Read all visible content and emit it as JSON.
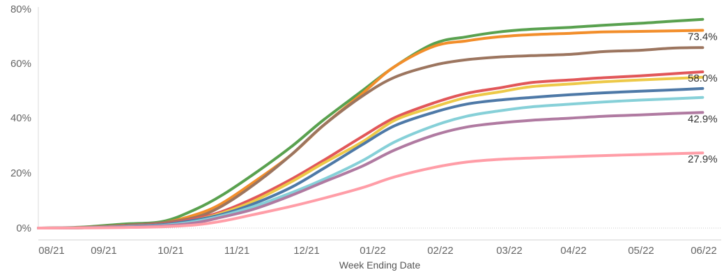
{
  "chart_data": {
    "type": "line",
    "xlabel": "Week Ending Date",
    "ylabel": "",
    "ylim": [
      0,
      80
    ],
    "y_tick_labels": [
      "0%",
      "20%",
      "40%",
      "60%",
      "80%"
    ],
    "y_ticks": [
      0,
      20,
      40,
      60,
      80
    ],
    "x_tick_labels": [
      "08/21",
      "09/21",
      "10/21",
      "11/21",
      "12/21",
      "01/22",
      "02/22",
      "03/22",
      "04/22",
      "05/22",
      "06/22"
    ],
    "x_range": [
      "2021-08-14",
      "2022-06-05"
    ],
    "grid": "horizontal baseline only",
    "x": [
      "2021-08-14",
      "2021-09-01",
      "2021-09-20",
      "2021-10-07",
      "2021-10-21",
      "2021-11-01",
      "2021-11-15",
      "2021-12-01",
      "2021-12-15",
      "2022-01-01",
      "2022-01-15",
      "2022-02-01",
      "2022-02-15",
      "2022-03-01",
      "2022-03-15",
      "2022-04-01",
      "2022-04-15",
      "2022-05-01",
      "2022-05-15",
      "2022-05-28"
    ],
    "series": [
      {
        "color": "#59a14f",
        "values": [
          0,
          0.3,
          1.5,
          2.5,
          7,
          12,
          20,
          30,
          40,
          51,
          60,
          68.5,
          71,
          72.8,
          73.8,
          74.5,
          75.3,
          76,
          76.8,
          77.5
        ]
      },
      {
        "color": "#f28e2b",
        "values": [
          0,
          0.2,
          1,
          2,
          5,
          9,
          17,
          27,
          38,
          50,
          60,
          67.5,
          69.5,
          71,
          71.8,
          72.3,
          72.8,
          73,
          73.2,
          73.4
        ]
      },
      {
        "color": "#9c755f",
        "values": [
          0,
          0.2,
          1,
          2,
          4,
          8,
          16,
          27,
          38,
          49,
          56,
          60.5,
          62.5,
          63.5,
          64,
          64.5,
          65.5,
          66,
          66.8,
          67
        ]
      },
      {
        "color": "#e15759",
        "values": [
          0,
          0.1,
          0.7,
          1.5,
          3.5,
          6,
          11,
          18,
          25,
          34,
          41,
          46.5,
          50,
          52,
          54,
          55,
          55.8,
          56.5,
          57.3,
          58
        ]
      },
      {
        "color": "#edc948",
        "values": [
          0,
          0.1,
          0.6,
          1.3,
          3,
          5.5,
          10,
          17,
          24,
          32,
          40,
          45,
          48.5,
          50.5,
          52.5,
          53.5,
          54.3,
          55,
          55.5,
          56
        ]
      },
      {
        "color": "#4e79a7",
        "values": [
          0,
          0.1,
          0.6,
          1.3,
          3,
          5,
          9,
          15,
          22,
          31,
          38,
          43,
          46,
          47.5,
          48.5,
          49.5,
          50.2,
          50.8,
          51.3,
          51.8
        ]
      },
      {
        "color": "#86d0d8",
        "values": [
          0,
          0.1,
          0.5,
          1,
          2.5,
          4.5,
          8,
          13,
          18,
          25,
          32,
          38,
          41.5,
          43.5,
          45,
          46,
          46.8,
          47.5,
          48,
          48.5
        ]
      },
      {
        "color": "#b07aa1",
        "values": [
          0,
          0.1,
          0.4,
          0.8,
          2,
          4,
          7,
          12,
          17,
          23,
          29,
          34.5,
          37.5,
          39,
          40,
          40.8,
          41.5,
          42,
          42.5,
          42.9
        ]
      },
      {
        "color": "#ff9da7",
        "values": [
          0,
          0.05,
          0.2,
          0.5,
          1.2,
          2.5,
          5,
          8,
          11,
          15,
          19,
          22.5,
          24.5,
          25.5,
          26,
          26.5,
          26.9,
          27.3,
          27.6,
          27.9
        ]
      }
    ],
    "end_labels": [
      {
        "text": "73.4%",
        "value": 73.4
      },
      {
        "text": "58.0%",
        "value": 58.0
      },
      {
        "text": "42.9%",
        "value": 42.9
      },
      {
        "text": "27.9%",
        "value": 27.9
      }
    ]
  }
}
